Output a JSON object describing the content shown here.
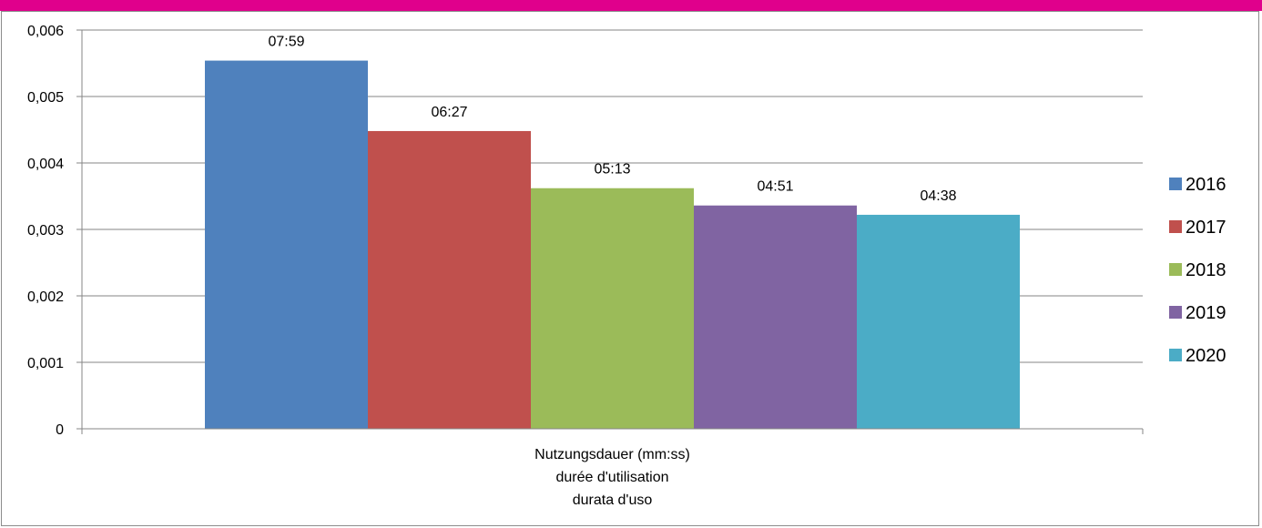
{
  "chart_data": {
    "type": "bar",
    "categories": [
      "Nutzungsdauer (mm:ss)\ndurée d'utilisation\ndurata d'uso"
    ],
    "category_lines": [
      "Nutzungsdauer (mm:ss)",
      "durée d'utilisation",
      "durata d'uso"
    ],
    "series": [
      {
        "name": "2016",
        "values": [
          0.00554
        ],
        "data_label": "07:59",
        "color": "#4f81bd"
      },
      {
        "name": "2017",
        "values": [
          0.00448
        ],
        "data_label": "06:27",
        "color": "#c0504d"
      },
      {
        "name": "2018",
        "values": [
          0.00362
        ],
        "data_label": "05:13",
        "color": "#9bbb59"
      },
      {
        "name": "2019",
        "values": [
          0.00336
        ],
        "data_label": "04:51",
        "color": "#8064a2"
      },
      {
        "name": "2020",
        "values": [
          0.00322
        ],
        "data_label": "04:38",
        "color": "#4bacc6"
      }
    ],
    "ylim": [
      0,
      0.006
    ],
    "yticks": [
      0,
      0.001,
      0.002,
      0.003,
      0.004,
      0.005,
      0.006
    ],
    "ytick_labels": [
      "0",
      "0,001",
      "0,002",
      "0,003",
      "0,004",
      "0,005",
      "0,006"
    ],
    "grid": true,
    "legend": "right",
    "header_color": "#e0008c"
  }
}
